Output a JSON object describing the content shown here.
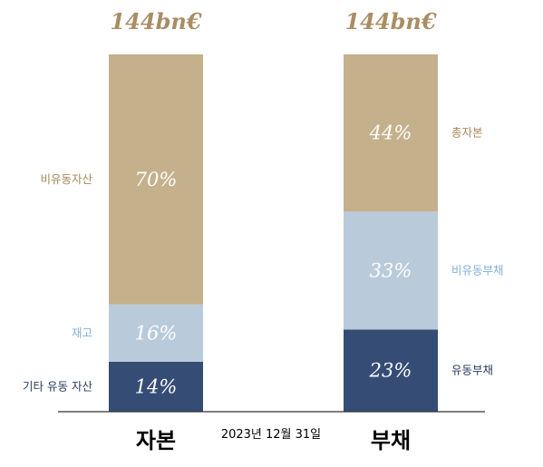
{
  "colors": {
    "tan": "#c5b08c",
    "light_blue": "#b9cbdb",
    "navy": "#354d75",
    "tan_text": "#a88a5e",
    "light_blue_text": "#7fb0d8",
    "navy_text": "#2e3f5e",
    "total_text": "#a98d63"
  },
  "chart_data": {
    "type": "bar",
    "stacked": true,
    "date": "2023년 12월 31일",
    "categories": [
      "자본",
      "부채"
    ],
    "totals": [
      "144bn€",
      "144bn€"
    ],
    "ylim": [
      0,
      100
    ],
    "bars": [
      {
        "category": "자본",
        "total": "144bn€",
        "segments": [
          {
            "label": "기타 유동 자산",
            "value": 14,
            "text": "14%",
            "color": "navy"
          },
          {
            "label": "재고",
            "value": 16,
            "text": "16%",
            "color": "light_blue"
          },
          {
            "label": "비유동자산",
            "value": 70,
            "text": "70%",
            "color": "tan"
          }
        ]
      },
      {
        "category": "부채",
        "total": "144bn€",
        "segments": [
          {
            "label": "유동부채",
            "value": 23,
            "text": "23%",
            "color": "navy"
          },
          {
            "label": "비유동부채",
            "value": 33,
            "text": "33%",
            "color": "light_blue"
          },
          {
            "label": "총자본",
            "value": 44,
            "text": "44%",
            "color": "tan"
          }
        ]
      }
    ]
  }
}
